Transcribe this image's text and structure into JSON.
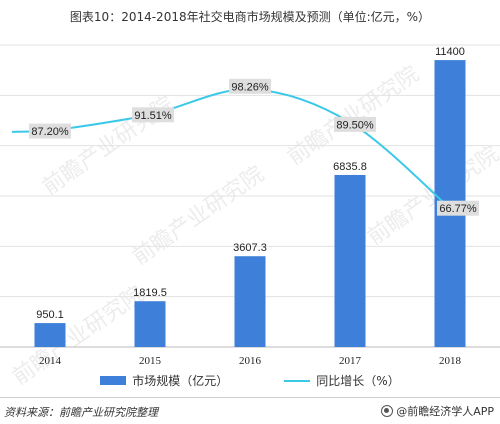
{
  "title": "图表10：2014-2018年社交电商市场规模及预测（单位:亿元，%）",
  "chart_data": {
    "type": "bar",
    "categories": [
      "2014",
      "2015",
      "2016",
      "2017",
      "2018"
    ],
    "series": [
      {
        "name": "市场规模（亿元）",
        "type": "bar",
        "values": [
          950.1,
          1819.5,
          3607.3,
          6835.8,
          11400
        ],
        "labels": [
          "950.1",
          "1819.5",
          "3607.3",
          "6835.8",
          "11400"
        ],
        "color": "#3d7fd9"
      },
      {
        "name": "同比增长（%）",
        "type": "line",
        "values": [
          87.2,
          91.51,
          98.26,
          89.5,
          66.77
        ],
        "labels": [
          "87.20%",
          "91.51%",
          "98.26%",
          "89.50%",
          "66.77%"
        ],
        "color": "#3cc8e8"
      }
    ],
    "ylim": [
      0,
      12000
    ],
    "y2lim": [
      30,
      110
    ],
    "grid": true,
    "legend": "bottom"
  },
  "legend": {
    "bar_label": "市场规模（亿元）",
    "line_label": "同比增长（%）"
  },
  "footer": {
    "source": "资料来源：前瞻产业研究院整理",
    "brand": "@前瞻经济学人APP"
  },
  "watermark": "前瞻产业研究院"
}
